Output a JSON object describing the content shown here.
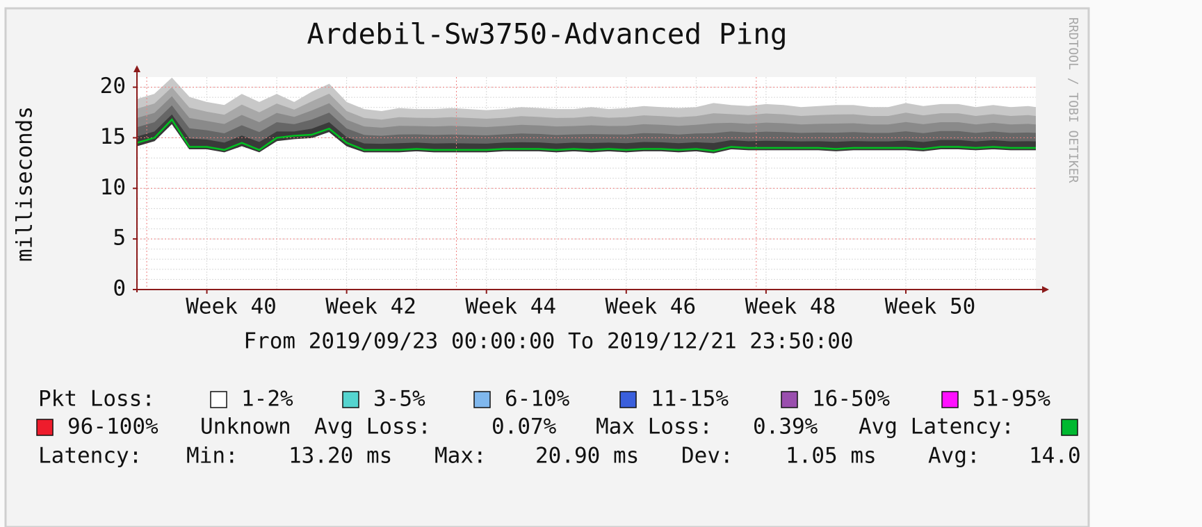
{
  "chart_data": {
    "type": "smoke",
    "title": "Ardebil-Sw3750-Advanced Ping",
    "subtitle": "From 2019/09/23 00:00:00 To 2019/12/21 23:50:00",
    "ylabel": "milliseconds",
    "watermark": "RRDTOOL / TOBI OETIKER",
    "xlim": [
      39,
      51.86
    ],
    "xticks": [
      {
        "value": 40,
        "label": "Week 40"
      },
      {
        "value": 42,
        "label": "Week 42"
      },
      {
        "value": 44,
        "label": "Week 44"
      },
      {
        "value": 46,
        "label": "Week 46"
      },
      {
        "value": 48,
        "label": "Week 48"
      },
      {
        "value": 50,
        "label": "Week 50"
      }
    ],
    "xgrid_major": [
      39.14,
      43.57,
      47.86
    ],
    "ylim": [
      0,
      21
    ],
    "yticks": [
      0,
      5,
      10,
      15,
      20
    ],
    "grid": true,
    "color": "#00c020",
    "x": [
      39,
      39.25,
      39.5,
      39.75,
      40,
      40.25,
      40.5,
      40.75,
      41,
      41.25,
      41.5,
      41.75,
      42,
      42.25,
      42.5,
      42.75,
      43,
      43.25,
      43.5,
      43.75,
      44,
      44.25,
      44.5,
      44.75,
      45,
      45.25,
      45.5,
      45.75,
      46,
      46.25,
      46.5,
      46.75,
      47,
      47.25,
      47.5,
      47.75,
      48,
      48.25,
      48.5,
      48.75,
      49,
      49.25,
      49.5,
      49.75,
      50,
      50.25,
      50.5,
      50.75,
      51,
      51.25,
      51.5,
      51.75,
      51.86
    ],
    "values": [
      14.5,
      15.0,
      16.8,
      14.1,
      14.1,
      13.8,
      14.5,
      13.8,
      15.0,
      15.2,
      15.3,
      15.9,
      14.5,
      13.8,
      13.8,
      13.8,
      13.9,
      13.8,
      13.8,
      13.8,
      13.8,
      13.9,
      13.9,
      13.9,
      13.8,
      13.9,
      13.8,
      13.9,
      13.8,
      13.9,
      13.9,
      13.8,
      13.9,
      13.7,
      14.1,
      14.0,
      14.0,
      14.0,
      14.0,
      14.0,
      13.9,
      14.0,
      14.0,
      14.0,
      14.0,
      13.9,
      14.1,
      14.1,
      14.0,
      14.1,
      14.0,
      14.0,
      14.0
    ],
    "smoke_low": [
      14.2,
      14.7,
      16.4,
      13.9,
      13.9,
      13.6,
      14.2,
      13.6,
      14.7,
      14.9,
      15.0,
      15.6,
      14.2,
      13.6,
      13.6,
      13.6,
      13.7,
      13.6,
      13.6,
      13.6,
      13.6,
      13.7,
      13.7,
      13.7,
      13.6,
      13.7,
      13.6,
      13.7,
      13.6,
      13.7,
      13.7,
      13.6,
      13.7,
      13.5,
      13.9,
      13.8,
      13.8,
      13.8,
      13.8,
      13.8,
      13.7,
      13.8,
      13.8,
      13.8,
      13.8,
      13.7,
      13.9,
      13.9,
      13.8,
      13.9,
      13.8,
      13.8,
      13.8
    ],
    "smoke_high": [
      18.8,
      19.3,
      20.9,
      19.0,
      18.5,
      18.2,
      19.3,
      18.5,
      19.3,
      18.5,
      19.5,
      20.3,
      18.5,
      17.8,
      17.6,
      17.9,
      17.8,
      17.8,
      17.9,
      17.8,
      17.7,
      17.8,
      18.0,
      17.9,
      17.8,
      17.8,
      18.0,
      17.8,
      17.9,
      18.1,
      18.0,
      17.9,
      18.0,
      18.4,
      18.2,
      18.1,
      18.3,
      18.2,
      18.0,
      18.1,
      18.2,
      18.2,
      18.0,
      18.0,
      18.4,
      18.1,
      18.3,
      18.3,
      18.0,
      18.2,
      18.0,
      18.1,
      18.0
    ],
    "legend": {
      "title": "Pkt Loss:",
      "items": [
        {
          "label": "1-2%",
          "color": "#ffffff"
        },
        {
          "label": "3-5%",
          "color": "#55d4cf"
        },
        {
          "label": "6-10%",
          "color": "#80b8ee"
        },
        {
          "label": "11-15%",
          "color": "#3a5fdc"
        },
        {
          "label": "16-50%",
          "color": "#9a4fae"
        },
        {
          "label": "51-95%",
          "color": "#ff10ff"
        },
        {
          "label": "96-100%",
          "color": "#ee1c2c"
        }
      ],
      "unknown": "Unknown",
      "avg_loss_label": "Avg Loss:",
      "avg_loss": "0.07%",
      "max_loss_label": "Max Loss:",
      "max_loss": "0.39%",
      "avg_latency_label": "Avg Latency:",
      "avg_latency_color": "#00b830"
    },
    "stats": {
      "label": "Latency:",
      "min_label": "Min:",
      "min": "13.20 ms",
      "max_label": "Max:",
      "max": "20.90 ms",
      "dev_label": "Dev:",
      "dev": "1.05 ms",
      "avg_label": "Avg:",
      "avg": "14.0"
    }
  }
}
